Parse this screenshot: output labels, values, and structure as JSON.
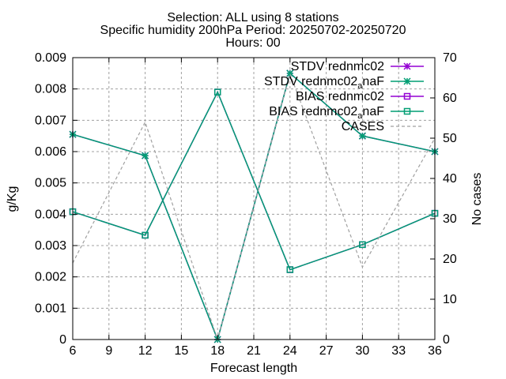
{
  "chart_data": {
    "type": "line",
    "title_lines": [
      "Selection: ALL using     8 stations",
      "Specific humidity 200hPa   Period: 20250702-20250720",
      "Hours: 00"
    ],
    "xlabel": "Forecast length",
    "ylabel": "g/Kg",
    "y2label": "No cases",
    "x": [
      6,
      12,
      18,
      24,
      30,
      36
    ],
    "xticks": [
      6,
      9,
      12,
      15,
      18,
      21,
      24,
      27,
      30,
      33,
      36
    ],
    "xlim": [
      6,
      36
    ],
    "ylim": [
      0,
      0.009
    ],
    "yticks": [
      "0",
      "0.001",
      "0.002",
      "0.003",
      "0.004",
      "0.005",
      "0.006",
      "0.007",
      "0.008",
      "0.009"
    ],
    "y2lim": [
      0,
      70
    ],
    "y2ticks": [
      "0",
      "10",
      "20",
      "30",
      "40",
      "50",
      "60",
      "70"
    ],
    "grid": true,
    "legend_position": "top-right",
    "series": [
      {
        "name": "STDV rednmc02",
        "axis": "y",
        "color": "#9400d3",
        "marker": "star",
        "dash": false,
        "values": [
          0.00655,
          0.00587,
          0.0,
          0.0085,
          0.0065,
          0.006
        ]
      },
      {
        "name": "STDV rednmc02_anaF",
        "name_base": "STDV rednmc02",
        "name_sub": "a",
        "name_tail": "naF",
        "axis": "y",
        "color": "#009e73",
        "marker": "star",
        "dash": false,
        "values": [
          0.00655,
          0.00587,
          0.0,
          0.0085,
          0.0065,
          0.006
        ]
      },
      {
        "name": "BIAS rednmc02",
        "axis": "y",
        "color": "#9400d3",
        "marker": "square",
        "dash": false,
        "values": [
          0.00408,
          0.00333,
          0.0079,
          0.00223,
          0.00303,
          0.00403
        ]
      },
      {
        "name": "BIAS rednmc02_anaF",
        "name_base": "BIAS rednmc02",
        "name_sub": "a",
        "name_tail": "naF",
        "axis": "y",
        "color": "#009e73",
        "marker": "square",
        "dash": false,
        "values": [
          0.00408,
          0.00333,
          0.0079,
          0.00223,
          0.00303,
          0.00403
        ]
      },
      {
        "name": "CASES",
        "axis": "y2",
        "color": "#a0a0a0",
        "marker": "none",
        "dash": true,
        "values": [
          19,
          54,
          0,
          66,
          18,
          50
        ]
      }
    ]
  }
}
